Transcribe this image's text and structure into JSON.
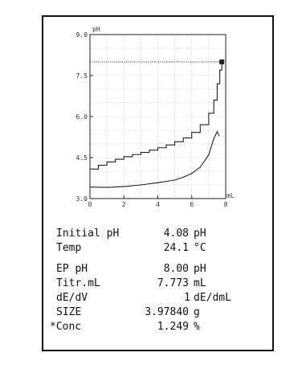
{
  "chart_data": {
    "type": "line",
    "xlabel": "mL",
    "ylabel": "pH",
    "xlim": [
      0,
      8
    ],
    "ylim": [
      3.0,
      9.0
    ],
    "x_ticks": [
      "0",
      "2",
      "4",
      "6",
      "8"
    ],
    "y_ticks": [
      "3.0",
      "4.5",
      "6.0",
      "7.5",
      "9.0"
    ],
    "grid": true,
    "series": [
      {
        "values": [
          [
            0,
            4.08
          ],
          [
            0.5,
            4.22
          ],
          [
            1.0,
            4.34
          ],
          [
            1.5,
            4.44
          ],
          [
            2.0,
            4.53
          ],
          [
            2.5,
            4.61
          ],
          [
            3.0,
            4.69
          ],
          [
            3.5,
            4.77
          ],
          [
            4.0,
            4.86
          ],
          [
            4.5,
            4.96
          ],
          [
            5.0,
            5.08
          ],
          [
            5.5,
            5.22
          ],
          [
            6.0,
            5.42
          ],
          [
            6.5,
            5.7
          ],
          [
            7.0,
            6.12
          ],
          [
            7.3,
            6.6
          ],
          [
            7.5,
            7.2
          ],
          [
            7.65,
            7.7
          ],
          [
            7.773,
            8.0
          ]
        ]
      },
      {
        "values": [
          [
            0,
            3.42
          ],
          [
            1.0,
            3.41
          ],
          [
            2.0,
            3.44
          ],
          [
            3.0,
            3.5
          ],
          [
            4.0,
            3.58
          ],
          [
            5.0,
            3.68
          ],
          [
            5.5,
            3.78
          ],
          [
            6.0,
            3.92
          ],
          [
            6.5,
            4.15
          ],
          [
            7.0,
            4.6
          ],
          [
            7.3,
            5.2
          ],
          [
            7.5,
            5.45
          ],
          [
            7.6,
            5.3
          ]
        ]
      }
    ],
    "endpoint": {
      "x": 7.773,
      "y": 8.0
    }
  },
  "readout": {
    "initial_ph_label": "Initial pH",
    "initial_ph_value": "4.08",
    "initial_ph_unit": "pH",
    "temp_label": "Temp",
    "temp_value": "24.1",
    "temp_unit": "°C",
    "ep_ph_label": "EP pH",
    "ep_ph_value": "8.00",
    "ep_ph_unit": "pH",
    "titr_label": "Titr.mL",
    "titr_value": "7.773",
    "titr_unit": "mL",
    "dedv_label": "dE/dV",
    "dedv_value": "1",
    "dedv_unit": "dE/dmL",
    "size_label": "SIZE",
    "size_value": "3.97840",
    "size_unit": "g",
    "conc_label": "*Conc",
    "conc_value": "1.249",
    "conc_unit": "%"
  }
}
